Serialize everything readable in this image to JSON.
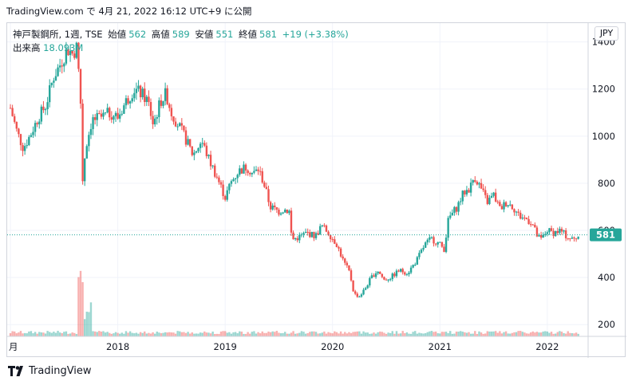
{
  "caption": "TradingView.com で 4月 21, 2022 16:12 UTC+9 に公開",
  "legend": {
    "symbol": "神戸製鋼所, 1週, TSE",
    "open_label": "始値",
    "open": "562",
    "high_label": "高値",
    "high": "589",
    "low_label": "安値",
    "low": "551",
    "close_label": "終値",
    "close": "581",
    "change": "+19 (+3.38%)",
    "volume_label": "出来高",
    "volume": "18.093M"
  },
  "currency": "JPY",
  "price_badge": "581",
  "brand": "TradingView",
  "colors": {
    "up": "#26a69a",
    "down": "#ef5350",
    "grid": "#f0f3fa",
    "badge": "#26a69a"
  },
  "chart_data": {
    "type": "candlestick",
    "y_ticks": [
      "1400",
      "1200",
      "1000",
      "800",
      "600",
      "400",
      "200"
    ],
    "y_tick_values": [
      1400,
      1200,
      1000,
      800,
      600,
      400,
      200
    ],
    "x_ticks": [
      {
        "label": "月",
        "t": 2017.0
      },
      {
        "label": "2018",
        "t": 2018.0
      },
      {
        "label": "2019",
        "t": 2019.0
      },
      {
        "label": "2020",
        "t": 2020.0
      },
      {
        "label": "2021",
        "t": 2021.0
      },
      {
        "label": "2022",
        "t": 2022.0
      }
    ],
    "ylim": [
      150,
      1480
    ],
    "xlim": [
      2016.97,
      2022.38
    ],
    "last_price": 581,
    "price_path": [
      [
        2017.0,
        1120
      ],
      [
        2017.06,
        1020
      ],
      [
        2017.12,
        950
      ],
      [
        2017.18,
        1000
      ],
      [
        2017.26,
        1080
      ],
      [
        2017.33,
        1130
      ],
      [
        2017.4,
        1250
      ],
      [
        2017.47,
        1310
      ],
      [
        2017.53,
        1370
      ],
      [
        2017.58,
        1350
      ],
      [
        2017.62,
        1380
      ],
      [
        2017.66,
        1100
      ],
      [
        2017.67,
        800
      ],
      [
        2017.7,
        950
      ],
      [
        2017.76,
        1070
      ],
      [
        2017.85,
        1080
      ],
      [
        2017.93,
        1100
      ],
      [
        2018.0,
        1080
      ],
      [
        2018.08,
        1150
      ],
      [
        2018.15,
        1200
      ],
      [
        2018.22,
        1180
      ],
      [
        2018.28,
        1150
      ],
      [
        2018.33,
        1050
      ],
      [
        2018.4,
        1150
      ],
      [
        2018.45,
        1180
      ],
      [
        2018.5,
        1100
      ],
      [
        2018.56,
        1050
      ],
      [
        2018.62,
        1000
      ],
      [
        2018.7,
        920
      ],
      [
        2018.78,
        980
      ],
      [
        2018.85,
        900
      ],
      [
        2018.92,
        830
      ],
      [
        2019.0,
        740
      ],
      [
        2019.05,
        800
      ],
      [
        2019.12,
        850
      ],
      [
        2019.2,
        870
      ],
      [
        2019.26,
        840
      ],
      [
        2019.31,
        860
      ],
      [
        2019.36,
        800
      ],
      [
        2019.42,
        700
      ],
      [
        2019.5,
        680
      ],
      [
        2019.55,
        690
      ],
      [
        2019.6,
        680
      ],
      [
        2019.62,
        560
      ],
      [
        2019.68,
        570
      ],
      [
        2019.76,
        590
      ],
      [
        2019.84,
        575
      ],
      [
        2019.9,
        620
      ],
      [
        2019.96,
        590
      ],
      [
        2020.04,
        540
      ],
      [
        2020.1,
        470
      ],
      [
        2020.16,
        420
      ],
      [
        2020.2,
        330
      ],
      [
        2020.25,
        320
      ],
      [
        2020.3,
        350
      ],
      [
        2020.36,
        400
      ],
      [
        2020.42,
        430
      ],
      [
        2020.48,
        390
      ],
      [
        2020.54,
        400
      ],
      [
        2020.62,
        430
      ],
      [
        2020.7,
        420
      ],
      [
        2020.78,
        470
      ],
      [
        2020.86,
        540
      ],
      [
        2020.92,
        565
      ],
      [
        2021.0,
        540
      ],
      [
        2021.04,
        520
      ],
      [
        2021.08,
        650
      ],
      [
        2021.16,
        700
      ],
      [
        2021.22,
        760
      ],
      [
        2021.28,
        780
      ],
      [
        2021.32,
        830
      ],
      [
        2021.37,
        790
      ],
      [
        2021.44,
        720
      ],
      [
        2021.5,
        750
      ],
      [
        2021.56,
        690
      ],
      [
        2021.62,
        720
      ],
      [
        2021.68,
        700
      ],
      [
        2021.74,
        660
      ],
      [
        2021.8,
        650
      ],
      [
        2021.86,
        630
      ],
      [
        2021.9,
        580
      ],
      [
        2021.94,
        560
      ],
      [
        2022.0,
        600
      ],
      [
        2022.06,
        590
      ],
      [
        2022.12,
        600
      ],
      [
        2022.18,
        575
      ],
      [
        2022.24,
        560
      ],
      [
        2022.3,
        581
      ]
    ]
  }
}
